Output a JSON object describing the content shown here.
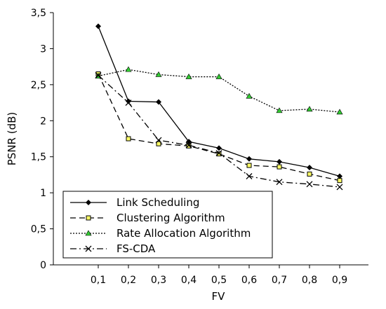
{
  "chart_data": {
    "type": "line",
    "title": "",
    "xlabel": "FV",
    "ylabel": "PSNR (dB)",
    "categories": [
      "0,1",
      "0,2",
      "0,3",
      "0,4",
      "0,5",
      "0,6",
      "0,7",
      "0,8",
      "0,9"
    ],
    "y_tick_labels": [
      "0",
      "0,5",
      "1",
      "1,5",
      "2",
      "2,5",
      "3",
      "3,5"
    ],
    "ylim": [
      0,
      3.5
    ],
    "grid": false,
    "legend_position": "bottom-left",
    "series": [
      {
        "name": "Link Scheduling",
        "values": [
          3.31,
          2.27,
          2.26,
          1.71,
          1.62,
          1.47,
          1.43,
          1.35,
          1.23
        ],
        "color": "#000000",
        "dash": "solid",
        "marker": "diamond"
      },
      {
        "name": "Clustering Algorithm",
        "values": [
          2.65,
          1.75,
          1.68,
          1.65,
          1.54,
          1.38,
          1.36,
          1.26,
          1.17
        ],
        "color": "#000000",
        "dash": "dashed",
        "marker": "square-yellow"
      },
      {
        "name": "Rate Allocation Algorithm",
        "values": [
          2.62,
          2.71,
          2.64,
          2.61,
          2.61,
          2.34,
          2.14,
          2.16,
          2.12
        ],
        "color": "#000000",
        "dash": "dotted",
        "marker": "triangle-green"
      },
      {
        "name": "FS-CDA",
        "values": [
          2.63,
          2.25,
          1.73,
          1.66,
          1.55,
          1.23,
          1.15,
          1.12,
          1.08
        ],
        "color": "#000000",
        "dash": "dashdot",
        "marker": "x"
      }
    ]
  }
}
